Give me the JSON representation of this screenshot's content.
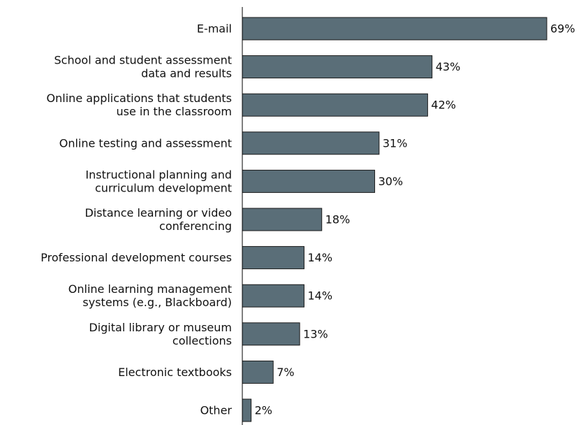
{
  "chart_data": {
    "type": "bar",
    "orientation": "horizontal",
    "categories": [
      [
        "E-mail"
      ],
      [
        "School and student assessment",
        "data and results"
      ],
      [
        "Online applications that students",
        "use in the classroom"
      ],
      [
        "Online testing and assessment"
      ],
      [
        "Instructional planning and",
        "curriculum development"
      ],
      [
        "Distance learning or video",
        "conferencing"
      ],
      [
        "Professional development courses"
      ],
      [
        "Online learning management",
        "systems (e.g., Blackboard)"
      ],
      [
        "Digital library or museum",
        "collections"
      ],
      [
        "Electronic textbooks"
      ],
      [
        "Other"
      ]
    ],
    "values": [
      69,
      43,
      42,
      31,
      30,
      18,
      14,
      14,
      13,
      7,
      2
    ],
    "value_labels": [
      "69%",
      "43%",
      "42%",
      "31%",
      "30%",
      "18%",
      "14%",
      "14%",
      "13%",
      "7%",
      "2%"
    ],
    "unit": "%",
    "xlim": [
      0,
      69
    ],
    "bar_color": "#5a6e78",
    "grid": false
  }
}
